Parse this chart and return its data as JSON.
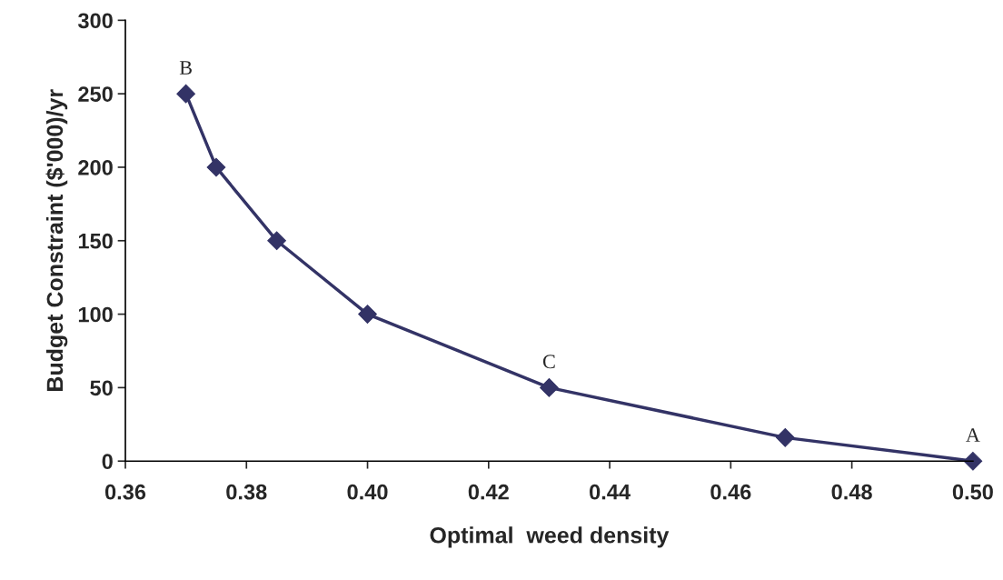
{
  "chart_data": {
    "type": "line",
    "xlabel": "Optimal  weed density",
    "ylabel": "Budget Constraint ($'000)/yr",
    "x": [
      0.37,
      0.375,
      0.385,
      0.4,
      0.43,
      0.469,
      0.5
    ],
    "series": [
      {
        "color": "#333366",
        "values": [
          250,
          200,
          150,
          100,
          50,
          16,
          0
        ]
      }
    ],
    "marker": "diamond",
    "line_style": "solid",
    "grid": false,
    "legend": false,
    "xlim": [
      0.36,
      0.5
    ],
    "ylim": [
      0,
      300
    ],
    "xticks": [
      {
        "value": 0.36,
        "label": "0.36"
      },
      {
        "value": 0.38,
        "label": "0.38"
      },
      {
        "value": 0.4,
        "label": "0.40"
      },
      {
        "value": 0.42,
        "label": "0.42"
      },
      {
        "value": 0.44,
        "label": "0.44"
      },
      {
        "value": 0.46,
        "label": "0.46"
      },
      {
        "value": 0.48,
        "label": "0.48"
      },
      {
        "value": 0.5,
        "label": "0.50"
      }
    ],
    "yticks": [
      0,
      50,
      100,
      150,
      200,
      250,
      300
    ],
    "annotations": [
      {
        "text": "B",
        "x": 0.37,
        "y": 250
      },
      {
        "text": "C",
        "x": 0.43,
        "y": 50
      },
      {
        "text": "A",
        "x": 0.5,
        "y": 0
      }
    ]
  }
}
